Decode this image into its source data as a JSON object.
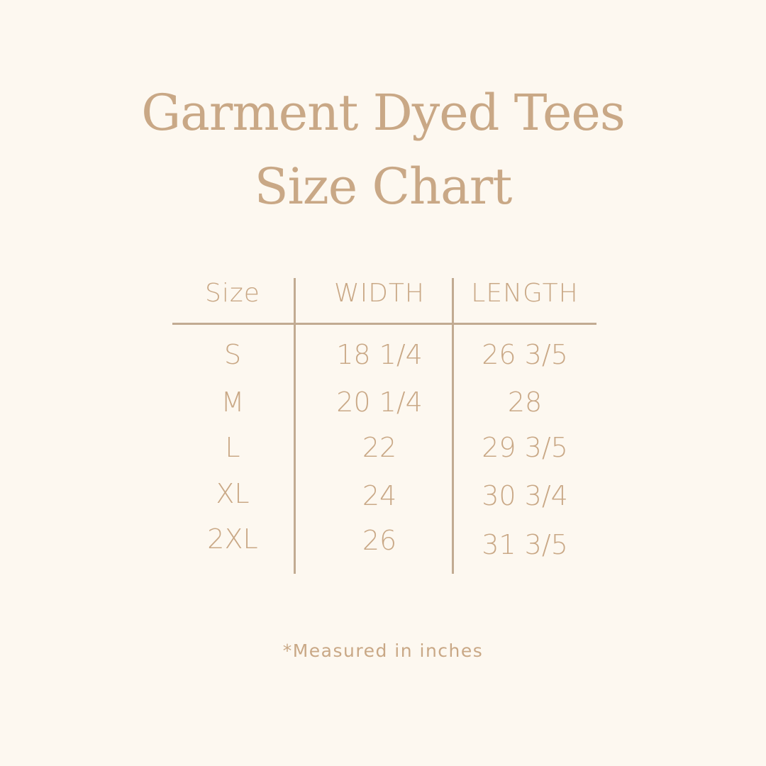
{
  "title": {
    "line1": "Garment Dyed Tees",
    "line2": "Size Chart"
  },
  "table": {
    "headers": [
      "Size",
      "WIDTH",
      "LENGTH"
    ],
    "rows": [
      [
        "S",
        "18 1/4",
        "26 3/5"
      ],
      [
        "M",
        "20 1/4",
        "28"
      ],
      [
        "L",
        "22",
        "29 3/5"
      ],
      [
        "XL",
        "24",
        "30 3/4"
      ],
      [
        "2XL",
        "26",
        "31 3/5"
      ]
    ]
  },
  "footnote": "*Measured in inches",
  "colors": {
    "background": "#fdf8f0",
    "text": "#c9a886",
    "lines": "#c2ab92"
  }
}
